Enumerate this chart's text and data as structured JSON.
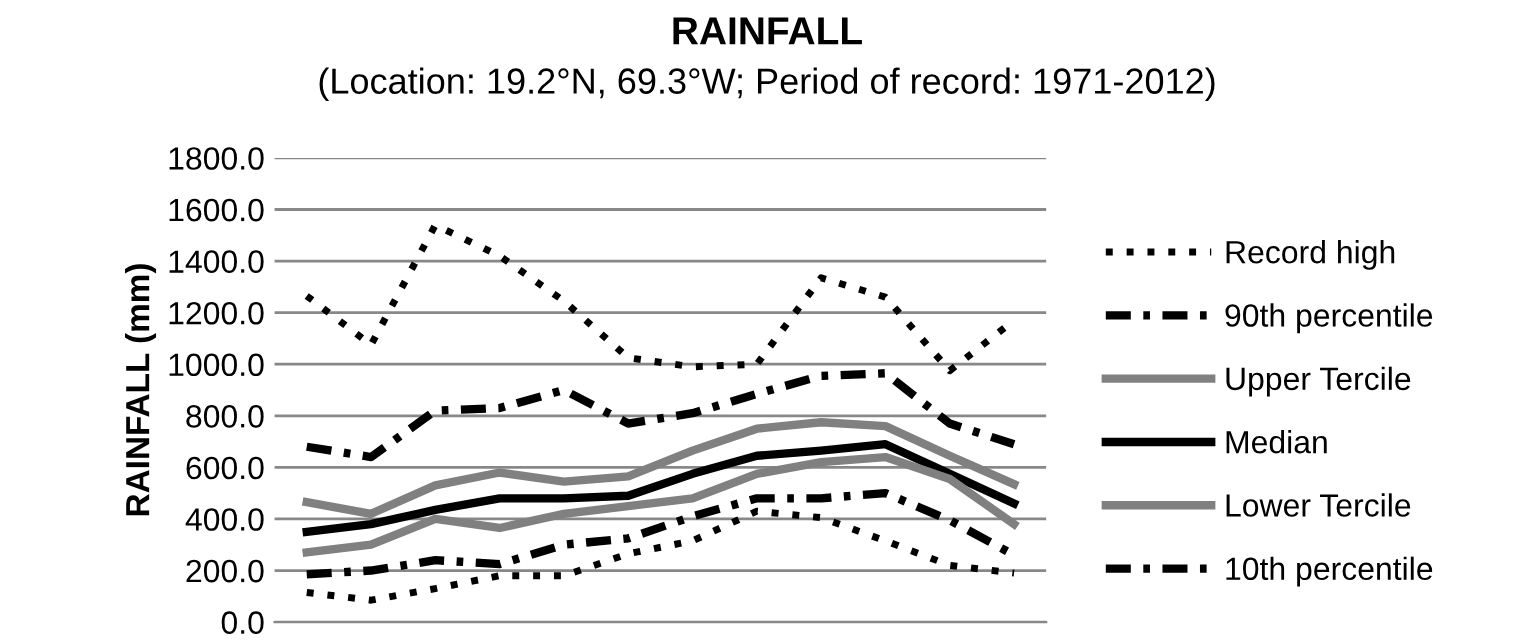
{
  "chart_data": {
    "type": "line",
    "title": "RAINFALL",
    "subtitle": "(Location: 19.2°N, 69.3°W; Period of record: 1971-2012)",
    "ylabel": "RAINFALL (mm)",
    "categories": [
      null,
      null,
      null,
      null,
      null,
      null,
      null,
      null,
      null,
      null,
      null,
      null
    ],
    "ylim": [
      0,
      1800
    ],
    "yticks": [
      {
        "value": 0,
        "label": "0.0"
      },
      {
        "value": 200,
        "label": "200.0"
      },
      {
        "value": 400,
        "label": "400.0"
      },
      {
        "value": 600,
        "label": "600.0"
      },
      {
        "value": 800,
        "label": "800.0"
      },
      {
        "value": 1000,
        "label": "1000.0"
      },
      {
        "value": 1200,
        "label": "1200.0"
      },
      {
        "value": 1400,
        "label": "1400.0"
      },
      {
        "value": 1600,
        "label": "1600.0"
      },
      {
        "value": 1800,
        "label": "1800.0"
      }
    ],
    "grid": "y",
    "legend": "right",
    "tick_labels": "y",
    "series": [
      {
        "name": "Record high",
        "color": "#000000",
        "line_style": "dotted",
        "values": [
          1265,
          1075,
          1540,
          1420,
          1245,
          1025,
          990,
          1000,
          1335,
          1260,
          975,
          1170
        ]
      },
      {
        "name": "90th percentile",
        "color": "#000000",
        "line_style": "dashed",
        "values": [
          680,
          640,
          820,
          830,
          900,
          770,
          810,
          885,
          955,
          965,
          770,
          690
        ]
      },
      {
        "name": "Upper Tercile",
        "color": "#808080",
        "line_style": "solid",
        "values": [
          465,
          420,
          530,
          580,
          545,
          565,
          665,
          750,
          775,
          760,
          645,
          535
        ]
      },
      {
        "name": "Median",
        "color": "#000000",
        "line_style": "solid",
        "values": [
          350,
          380,
          435,
          480,
          480,
          490,
          575,
          645,
          665,
          690,
          575,
          460
        ]
      },
      {
        "name": "Lower Tercile",
        "color": "#808080",
        "line_style": "solid",
        "values": [
          270,
          300,
          400,
          365,
          420,
          450,
          480,
          575,
          620,
          640,
          555,
          380
        ]
      },
      {
        "name": "10th percentile",
        "color": "#000000",
        "line_style": "dashed",
        "values": [
          185,
          200,
          240,
          225,
          300,
          325,
          410,
          480,
          480,
          500,
          395,
          260
        ]
      },
      {
        "color": "#000000",
        "line_style": "dotted",
        "values": [
          115,
          85,
          130,
          180,
          180,
          265,
          315,
          430,
          405,
          315,
          220,
          190
        ]
      }
    ]
  }
}
